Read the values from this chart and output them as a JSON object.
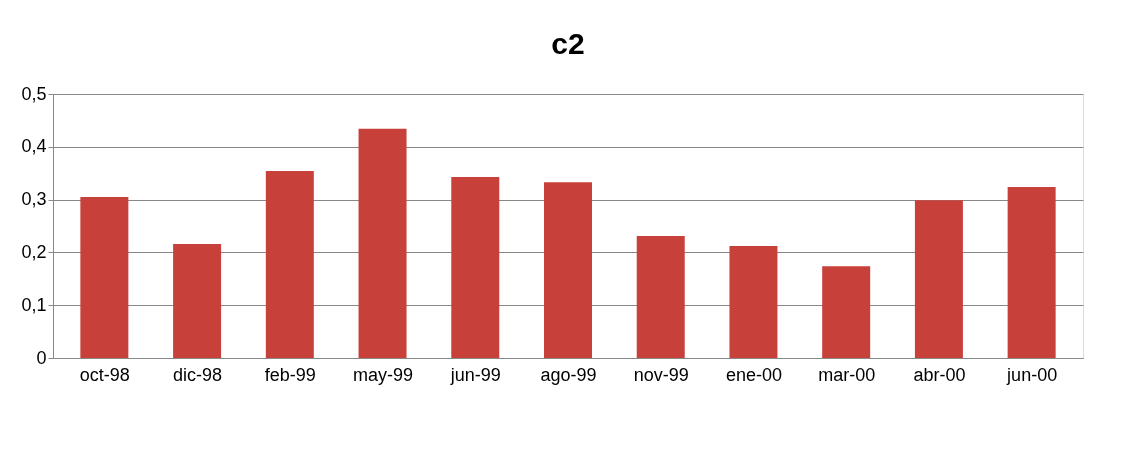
{
  "chart_data": {
    "type": "bar",
    "title": "c2",
    "categories": [
      "oct-98",
      "dic-98",
      "feb-99",
      "may-99",
      "jun-99",
      "ago-99",
      "nov-99",
      "ene-00",
      "mar-00",
      "abr-00",
      "jun-00"
    ],
    "values": [
      0.305,
      0.216,
      0.354,
      0.434,
      0.343,
      0.333,
      0.231,
      0.212,
      0.174,
      0.299,
      0.324
    ],
    "color": "#c8403a",
    "ylim": [
      0,
      0.5
    ],
    "yticks": [
      {
        "value": 0,
        "label": "0"
      },
      {
        "value": 0.1,
        "label": "0,1"
      },
      {
        "value": 0.2,
        "label": "0,2"
      },
      {
        "value": 0.3,
        "label": "0,3"
      },
      {
        "value": 0.4,
        "label": "0,4"
      },
      {
        "value": 0.5,
        "label": "0,5"
      }
    ],
    "grid": "y"
  }
}
